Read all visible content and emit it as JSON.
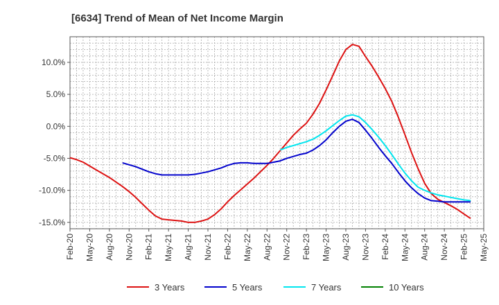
{
  "chart_data": {
    "type": "line",
    "title": "[6634]  Trend of Mean of Net Income Margin",
    "xlabel": "",
    "ylabel": "",
    "ylim": [
      -16,
      14
    ],
    "y_ticks": [
      10,
      5,
      0,
      -5,
      -10,
      -15
    ],
    "y_tick_labels": [
      "10.0%",
      "5.0%",
      "0.0%",
      "-5.0%",
      "-10.0%",
      "-15.0%"
    ],
    "x_range": [
      "Feb-20",
      "May-25"
    ],
    "x_tick_labels": [
      "Feb-20",
      "May-20",
      "Aug-20",
      "Nov-20",
      "Feb-21",
      "May-21",
      "Aug-21",
      "Nov-21",
      "Feb-22",
      "May-22",
      "Aug-22",
      "Nov-22",
      "Feb-23",
      "May-23",
      "Aug-23",
      "Nov-23",
      "Feb-24",
      "May-24",
      "Aug-24",
      "Nov-24",
      "Feb-25",
      "May-25"
    ],
    "grid": true,
    "legend_position": "bottom",
    "series": [
      {
        "name": "3 Years",
        "color": "#dd1111",
        "points": [
          [
            "Feb-20",
            -4.9
          ],
          [
            "Mar-20",
            -5.2
          ],
          [
            "Apr-20",
            -5.6
          ],
          [
            "May-20",
            -6.2
          ],
          [
            "Jun-20",
            -6.8
          ],
          [
            "Jul-20",
            -7.4
          ],
          [
            "Aug-20",
            -8.0
          ],
          [
            "Sep-20",
            -8.7
          ],
          [
            "Oct-20",
            -9.4
          ],
          [
            "Nov-20",
            -10.2
          ],
          [
            "Dec-20",
            -11.1
          ],
          [
            "Jan-21",
            -12.1
          ],
          [
            "Feb-21",
            -13.1
          ],
          [
            "Mar-21",
            -14.0
          ],
          [
            "Apr-21",
            -14.5
          ],
          [
            "May-21",
            -14.6
          ],
          [
            "Jun-21",
            -14.7
          ],
          [
            "Jul-21",
            -14.8
          ],
          [
            "Aug-21",
            -15.0
          ],
          [
            "Sep-21",
            -15.0
          ],
          [
            "Oct-21",
            -14.8
          ],
          [
            "Nov-21",
            -14.5
          ],
          [
            "Dec-21",
            -13.8
          ],
          [
            "Jan-22",
            -12.9
          ],
          [
            "Feb-22",
            -11.8
          ],
          [
            "Mar-22",
            -10.8
          ],
          [
            "Apr-22",
            -9.9
          ],
          [
            "May-22",
            -9.0
          ],
          [
            "Jun-22",
            -8.1
          ],
          [
            "Jul-22",
            -7.1
          ],
          [
            "Aug-22",
            -6.1
          ],
          [
            "Sep-22",
            -5.0
          ],
          [
            "Oct-22",
            -3.8
          ],
          [
            "Nov-22",
            -2.6
          ],
          [
            "Dec-22",
            -1.4
          ],
          [
            "Jan-23",
            -0.4
          ],
          [
            "Feb-23",
            0.5
          ],
          [
            "Mar-23",
            1.9
          ],
          [
            "Apr-23",
            3.6
          ],
          [
            "May-23",
            5.7
          ],
          [
            "Jun-23",
            7.9
          ],
          [
            "Jul-23",
            10.2
          ],
          [
            "Aug-23",
            12.0
          ],
          [
            "Sep-23",
            12.8
          ],
          [
            "Oct-23",
            12.5
          ],
          [
            "Nov-23",
            10.9
          ],
          [
            "Dec-23",
            9.4
          ],
          [
            "Jan-24",
            7.7
          ],
          [
            "Feb-24",
            5.9
          ],
          [
            "Mar-24",
            3.9
          ],
          [
            "Apr-24",
            1.4
          ],
          [
            "May-24",
            -1.3
          ],
          [
            "Jun-24",
            -4.1
          ],
          [
            "Jul-24",
            -6.6
          ],
          [
            "Aug-24",
            -8.9
          ],
          [
            "Sep-24",
            -10.5
          ],
          [
            "Oct-24",
            -11.4
          ],
          [
            "Nov-24",
            -11.9
          ],
          [
            "Dec-24",
            -12.4
          ],
          [
            "Jan-25",
            -13.0
          ],
          [
            "Feb-25",
            -13.7
          ],
          [
            "Mar-25",
            -14.4
          ]
        ]
      },
      {
        "name": "5 Years",
        "color": "#0000cc",
        "points": [
          [
            "Oct-20",
            -5.7
          ],
          [
            "Nov-20",
            -6.0
          ],
          [
            "Dec-20",
            -6.3
          ],
          [
            "Jan-21",
            -6.7
          ],
          [
            "Feb-21",
            -7.1
          ],
          [
            "Mar-21",
            -7.4
          ],
          [
            "Apr-21",
            -7.6
          ],
          [
            "May-21",
            -7.6
          ],
          [
            "Jun-21",
            -7.6
          ],
          [
            "Jul-21",
            -7.6
          ],
          [
            "Aug-21",
            -7.6
          ],
          [
            "Sep-21",
            -7.5
          ],
          [
            "Oct-21",
            -7.3
          ],
          [
            "Nov-21",
            -7.1
          ],
          [
            "Dec-21",
            -6.8
          ],
          [
            "Jan-22",
            -6.5
          ],
          [
            "Feb-22",
            -6.1
          ],
          [
            "Mar-22",
            -5.8
          ],
          [
            "Apr-22",
            -5.7
          ],
          [
            "May-22",
            -5.7
          ],
          [
            "Jun-22",
            -5.8
          ],
          [
            "Jul-22",
            -5.8
          ],
          [
            "Aug-22",
            -5.8
          ],
          [
            "Sep-22",
            -5.6
          ],
          [
            "Oct-22",
            -5.4
          ],
          [
            "Nov-22",
            -5.0
          ],
          [
            "Dec-22",
            -4.7
          ],
          [
            "Jan-23",
            -4.4
          ],
          [
            "Feb-23",
            -4.2
          ],
          [
            "Mar-23",
            -3.7
          ],
          [
            "Apr-23",
            -3.0
          ],
          [
            "May-23",
            -2.1
          ],
          [
            "Jun-23",
            -1.0
          ],
          [
            "Jul-23",
            0.0
          ],
          [
            "Aug-23",
            0.8
          ],
          [
            "Sep-23",
            1.1
          ],
          [
            "Oct-23",
            0.6
          ],
          [
            "Nov-23",
            -0.6
          ],
          [
            "Dec-23",
            -1.9
          ],
          [
            "Jan-24",
            -3.3
          ],
          [
            "Feb-24",
            -4.6
          ],
          [
            "Mar-24",
            -5.8
          ],
          [
            "Apr-24",
            -7.2
          ],
          [
            "May-24",
            -8.5
          ],
          [
            "Jun-24",
            -9.6
          ],
          [
            "Jul-24",
            -10.5
          ],
          [
            "Aug-24",
            -11.2
          ],
          [
            "Sep-24",
            -11.6
          ],
          [
            "Oct-24",
            -11.7
          ],
          [
            "Nov-24",
            -11.8
          ],
          [
            "Dec-24",
            -11.8
          ],
          [
            "Jan-25",
            -11.8
          ],
          [
            "Feb-25",
            -11.8
          ],
          [
            "Mar-25",
            -11.8
          ]
        ]
      },
      {
        "name": "7 Years",
        "color": "#00e5ee",
        "points": [
          [
            "Oct-22",
            -3.7
          ],
          [
            "Nov-22",
            -3.3
          ],
          [
            "Dec-22",
            -3.0
          ],
          [
            "Jan-23",
            -2.7
          ],
          [
            "Feb-23",
            -2.4
          ],
          [
            "Mar-23",
            -2.0
          ],
          [
            "Apr-23",
            -1.4
          ],
          [
            "May-23",
            -0.7
          ],
          [
            "Jun-23",
            0.1
          ],
          [
            "Jul-23",
            0.9
          ],
          [
            "Aug-23",
            1.6
          ],
          [
            "Sep-23",
            1.8
          ],
          [
            "Oct-23",
            1.5
          ],
          [
            "Nov-23",
            0.6
          ],
          [
            "Dec-23",
            -0.5
          ],
          [
            "Jan-24",
            -1.7
          ],
          [
            "Feb-24",
            -3.0
          ],
          [
            "Mar-24",
            -4.4
          ],
          [
            "Apr-24",
            -5.9
          ],
          [
            "May-24",
            -7.3
          ],
          [
            "Jun-24",
            -8.5
          ],
          [
            "Jul-24",
            -9.5
          ],
          [
            "Aug-24",
            -10.0
          ],
          [
            "Sep-24",
            -10.4
          ],
          [
            "Oct-24",
            -10.7
          ],
          [
            "Nov-24",
            -10.9
          ],
          [
            "Dec-24",
            -11.1
          ],
          [
            "Jan-25",
            -11.3
          ],
          [
            "Feb-25",
            -11.5
          ],
          [
            "Mar-25",
            -11.6
          ]
        ]
      },
      {
        "name": "10 Years",
        "color": "#008000",
        "points": []
      }
    ]
  }
}
